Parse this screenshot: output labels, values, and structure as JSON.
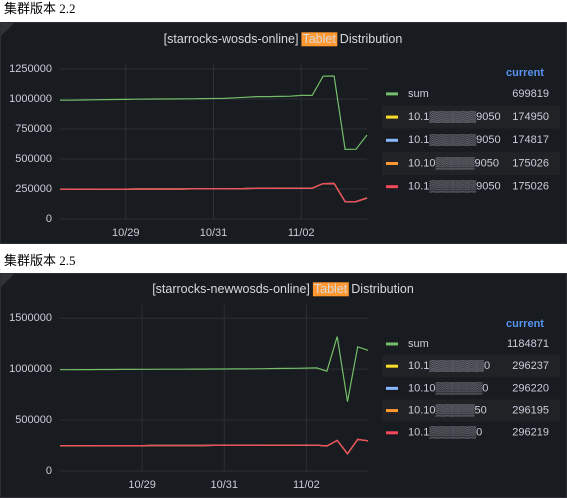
{
  "headings": [
    "集群版本 2.2",
    "集群版本 2.5"
  ],
  "chart_data": [
    {
      "type": "line",
      "title_prefix": "[starrocks-wosds-online]",
      "title_highlight": "Tablet",
      "title_suffix": "Distribution",
      "legend_header": "current",
      "legend": "right",
      "grid": true,
      "categories": [
        null,
        null,
        null,
        null,
        null,
        null,
        "10/29",
        null,
        null,
        null,
        null,
        null,
        null,
        null,
        "10/31",
        null,
        null,
        null,
        null,
        null,
        null,
        null,
        "11/02",
        null,
        null,
        null,
        null,
        null,
        null
      ],
      "ylim": [
        0,
        1300000
      ],
      "yticks": [
        0,
        250000,
        500000,
        750000,
        1000000,
        1250000
      ],
      "series": [
        {
          "name": "sum",
          "color": "#73bf69",
          "current": 699819,
          "values": [
            990000,
            990000,
            992000,
            993000,
            995000,
            996000,
            997000,
            998000,
            999000,
            1000000,
            1000000,
            1001000,
            1002000,
            1003000,
            1004000,
            1005000,
            1010000,
            1015000,
            1020000,
            1020000,
            1022000,
            1023000,
            1030000,
            1030000,
            1190000,
            1192000,
            580000,
            582000,
            699819
          ]
        },
        {
          "name": "10.1▒▒▒▒▒▒9050",
          "color": "#fade2a",
          "current": 174950,
          "values": [
            247000,
            247000,
            248000,
            248000,
            249000,
            249000,
            249000,
            250000,
            250000,
            250000,
            250000,
            250000,
            251000,
            251000,
            251000,
            251000,
            252000,
            254000,
            255000,
            255000,
            256000,
            256000,
            257000,
            257000,
            295000,
            296000,
            145000,
            145000,
            174950
          ]
        },
        {
          "name": "10.1▒▒▒▒▒▒9050",
          "color": "#8ab8ff",
          "current": 174817,
          "values": [
            247000,
            247000,
            248000,
            248000,
            249000,
            249000,
            249000,
            250000,
            250000,
            250000,
            250000,
            250000,
            251000,
            251000,
            251000,
            251000,
            252000,
            254000,
            255000,
            255000,
            256000,
            256000,
            257000,
            257000,
            295000,
            296000,
            145000,
            145000,
            174817
          ]
        },
        {
          "name": "10.10▒▒▒▒▒9050",
          "color": "#ff9830",
          "current": 175026,
          "values": [
            247000,
            247000,
            248000,
            248000,
            249000,
            249000,
            249000,
            250000,
            250000,
            250000,
            250000,
            250000,
            251000,
            251000,
            251000,
            251000,
            252000,
            254000,
            255000,
            255000,
            256000,
            256000,
            257000,
            257000,
            295000,
            296000,
            145000,
            145000,
            175026
          ]
        },
        {
          "name": "10.1▒▒▒▒▒▒9050",
          "color": "#f2495c",
          "current": 175026,
          "values": [
            247000,
            247000,
            248000,
            248000,
            249000,
            249000,
            249000,
            250000,
            250000,
            250000,
            250000,
            250000,
            251000,
            251000,
            251000,
            251000,
            252000,
            254000,
            255000,
            255000,
            256000,
            256000,
            257000,
            257000,
            295000,
            296000,
            145000,
            145000,
            175026
          ]
        }
      ]
    },
    {
      "type": "line",
      "title_prefix": "[starrocks-newwosds-online]",
      "title_highlight": "Tablet",
      "title_suffix": "Distribution",
      "legend_header": "current",
      "legend": "right",
      "grid": true,
      "categories": [
        null,
        null,
        null,
        null,
        null,
        null,
        null,
        null,
        "10/29",
        null,
        null,
        null,
        null,
        null,
        null,
        null,
        "10/31",
        null,
        null,
        null,
        null,
        null,
        null,
        null,
        "11/02",
        null,
        null,
        null,
        null,
        null,
        null
      ],
      "ylim": [
        0,
        1630000
      ],
      "yticks": [
        0,
        500000,
        1000000,
        1500000
      ],
      "series": [
        {
          "name": "sum",
          "color": "#73bf69",
          "current": 1184871,
          "values": [
            995000,
            995000,
            996000,
            996000,
            997000,
            997000,
            998000,
            998000,
            999000,
            999000,
            1000000,
            1000000,
            1000000,
            1001000,
            1001000,
            1002000,
            1002000,
            1003000,
            1003000,
            1004000,
            1005000,
            1006000,
            1007000,
            1008000,
            1010000,
            1012000,
            980000,
            1320000,
            680000,
            1220000,
            1184871
          ]
        },
        {
          "name": "10.1▒▒▒▒▒▒▒0",
          "color": "#fade2a",
          "current": 296237,
          "values": [
            248000,
            248000,
            248500,
            248500,
            249000,
            249000,
            249000,
            249500,
            249500,
            250000,
            250000,
            250000,
            250000,
            250500,
            250500,
            251000,
            251000,
            251000,
            251500,
            251500,
            252000,
            252000,
            252500,
            252500,
            253000,
            253000,
            245000,
            300000,
            170000,
            310000,
            296237
          ]
        },
        {
          "name": "10.10▒▒▒▒▒▒0",
          "color": "#8ab8ff",
          "current": 296220,
          "values": [
            248000,
            248000,
            248500,
            248500,
            249000,
            249000,
            249000,
            249500,
            249500,
            250000,
            250000,
            250000,
            250000,
            250500,
            250500,
            251000,
            251000,
            251000,
            251500,
            251500,
            252000,
            252000,
            252500,
            252500,
            253000,
            253000,
            245000,
            300000,
            170000,
            310000,
            296220
          ]
        },
        {
          "name": "10.10▒▒▒▒▒50",
          "color": "#ff9830",
          "current": 296195,
          "values": [
            248000,
            248000,
            248500,
            248500,
            249000,
            249000,
            249000,
            249500,
            249500,
            250000,
            250000,
            250000,
            250000,
            250500,
            250500,
            251000,
            251000,
            251000,
            251500,
            251500,
            252000,
            252000,
            252500,
            252500,
            253000,
            253000,
            245000,
            300000,
            170000,
            310000,
            296195
          ]
        },
        {
          "name": "10.1▒▒▒▒▒▒0",
          "color": "#f2495c",
          "current": 296219,
          "values": [
            248000,
            248000,
            248500,
            248500,
            249000,
            249000,
            249000,
            249500,
            249500,
            250000,
            250000,
            250000,
            250000,
            250500,
            250500,
            251000,
            251000,
            251000,
            251500,
            251500,
            252000,
            252000,
            252500,
            252500,
            253000,
            253000,
            245000,
            300000,
            170000,
            310000,
            296219
          ]
        }
      ]
    }
  ]
}
